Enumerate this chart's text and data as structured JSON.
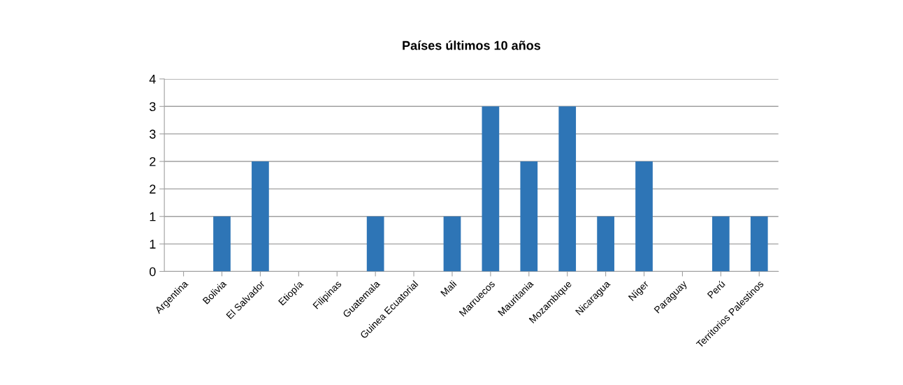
{
  "chart_data": {
    "type": "bar",
    "title": "Países últimos 10 años",
    "categories": [
      "Argentina",
      "Bolivia",
      "El Salvador",
      "Etiopía",
      "Filipinas",
      "Guatemala",
      "Guinea Ecuatorial",
      "Mali",
      "Marruecos",
      "Mauritania",
      "Mozambique",
      "Nicaragua",
      "Níger",
      "Paraguay",
      "Perú",
      "Territorios Palestinos"
    ],
    "values": [
      0,
      1,
      2,
      0,
      0,
      1,
      0,
      1,
      3,
      2,
      3,
      1,
      2,
      0,
      1,
      1
    ],
    "color": "#2e75b6",
    "ylim": [
      0,
      3.5
    ],
    "yticks": [
      0,
      {
        "value": 0.5,
        "label": "1"
      },
      1,
      {
        "value": 1.5,
        "label": "2"
      },
      2,
      {
        "value": 2.5,
        "label": "3"
      },
      3,
      {
        "value": 3.5,
        "label": "4"
      }
    ],
    "grid": "y",
    "legend": false
  }
}
